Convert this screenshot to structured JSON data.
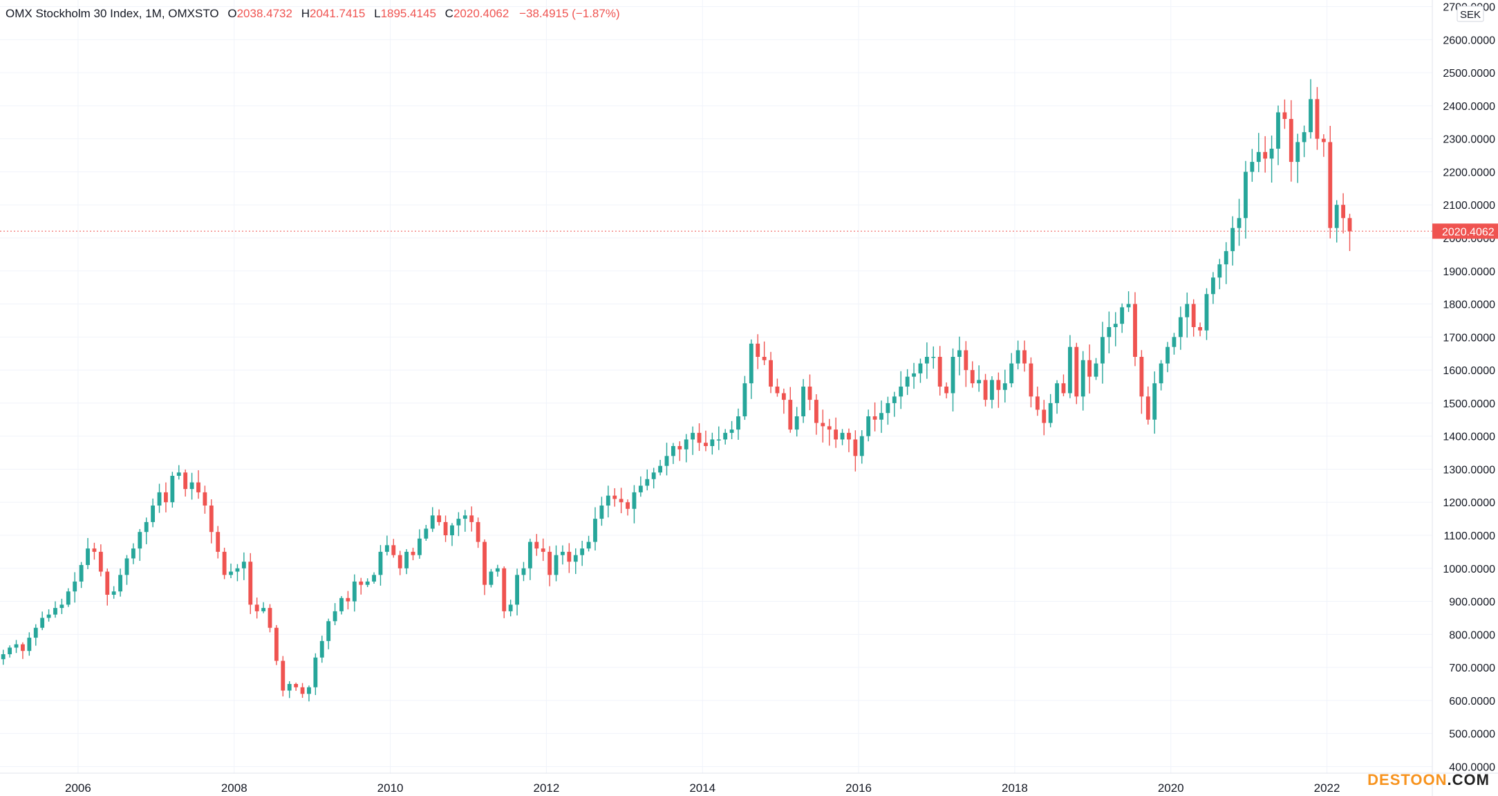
{
  "legend": {
    "symbol": "OMX Stockholm 30 Index, 1M, OMXSTO",
    "open_label": "O",
    "open": "2038.4732",
    "high_label": "H",
    "high": "2041.7415",
    "low_label": "L",
    "low": "1895.4145",
    "close_label": "C",
    "close": "2020.4062",
    "change": "−38.4915 (−1.87%)"
  },
  "currency": "SEK",
  "last_price_label": "2020.4062",
  "watermark": {
    "name": "DESTOON",
    "tld": ".COM"
  },
  "colors": {
    "up": "#26a69a",
    "down": "#ef5350",
    "grid": "#f0f3fa",
    "axis_text": "#131722",
    "last_price": "#ef5350"
  },
  "chart_data": {
    "type": "candlestick",
    "title": "OMX Stockholm 30 Index, 1M, OMXSTO",
    "interval": "1M",
    "currency": "SEK",
    "xlabel": "",
    "ylabel": "",
    "ylim": [
      380,
      2720
    ],
    "xlim": [
      2005.0,
      2023.35
    ],
    "x_ticks": [
      "2006",
      "2008",
      "2010",
      "2012",
      "2014",
      "2016",
      "2018",
      "2020",
      "2022"
    ],
    "y_ticks": [
      "2700.0000",
      "2600.0000",
      "2500.0000",
      "2400.0000",
      "2300.0000",
      "2200.0000",
      "2100.0000",
      "2000.0000",
      "1900.0000",
      "1800.0000",
      "1700.0000",
      "1600.0000",
      "1500.0000",
      "1400.0000",
      "1300.0000",
      "1200.0000",
      "1100.0000",
      "1000.0000",
      "900.0000",
      "800.0000",
      "700.0000",
      "600.0000",
      "500.0000",
      "400.0000"
    ],
    "last_price": 2020.4062,
    "grid": true,
    "legend": "top-left",
    "closes": [
      740,
      760,
      770,
      750,
      790,
      820,
      850,
      860,
      880,
      890,
      930,
      960,
      1010,
      1060,
      1050,
      990,
      920,
      930,
      980,
      1030,
      1060,
      1110,
      1140,
      1190,
      1230,
      1200,
      1280,
      1290,
      1240,
      1260,
      1230,
      1190,
      1110,
      1050,
      980,
      990,
      1000,
      1020,
      890,
      870,
      880,
      820,
      720,
      630,
      650,
      640,
      620,
      640,
      730,
      780,
      840,
      870,
      910,
      900,
      960,
      950,
      960,
      980,
      1050,
      1070,
      1040,
      1000,
      1050,
      1040,
      1090,
      1120,
      1160,
      1140,
      1100,
      1130,
      1150,
      1160,
      1140,
      1080,
      950,
      990,
      1000,
      870,
      890,
      980,
      1000,
      1080,
      1060,
      1050,
      980,
      1040,
      1050,
      1020,
      1040,
      1060,
      1080,
      1150,
      1190,
      1220,
      1210,
      1200,
      1180,
      1230,
      1250,
      1270,
      1290,
      1310,
      1340,
      1370,
      1360,
      1390,
      1410,
      1380,
      1370,
      1390,
      1390,
      1410,
      1420,
      1460,
      1560,
      1680,
      1640,
      1630,
      1550,
      1530,
      1510,
      1420,
      1460,
      1550,
      1510,
      1440,
      1430,
      1420,
      1390,
      1410,
      1390,
      1340,
      1400,
      1460,
      1450,
      1470,
      1500,
      1520,
      1550,
      1580,
      1590,
      1620,
      1640,
      1640,
      1550,
      1530,
      1640,
      1660,
      1600,
      1560,
      1570,
      1510,
      1570,
      1540,
      1560,
      1620,
      1660,
      1620,
      1520,
      1480,
      1440,
      1500,
      1560,
      1530,
      1670,
      1520,
      1630,
      1580,
      1620,
      1700,
      1730,
      1740,
      1790,
      1800,
      1640,
      1520,
      1450,
      1560,
      1620,
      1670,
      1700,
      1760,
      1800,
      1730,
      1720,
      1830,
      1880,
      1920,
      1960,
      2030,
      2060,
      2200,
      2230,
      2260,
      2240,
      2270,
      2380,
      2360,
      2230,
      2290,
      2320,
      2420,
      2300,
      2290,
      2030,
      2100,
      2060,
      2020
    ]
  }
}
